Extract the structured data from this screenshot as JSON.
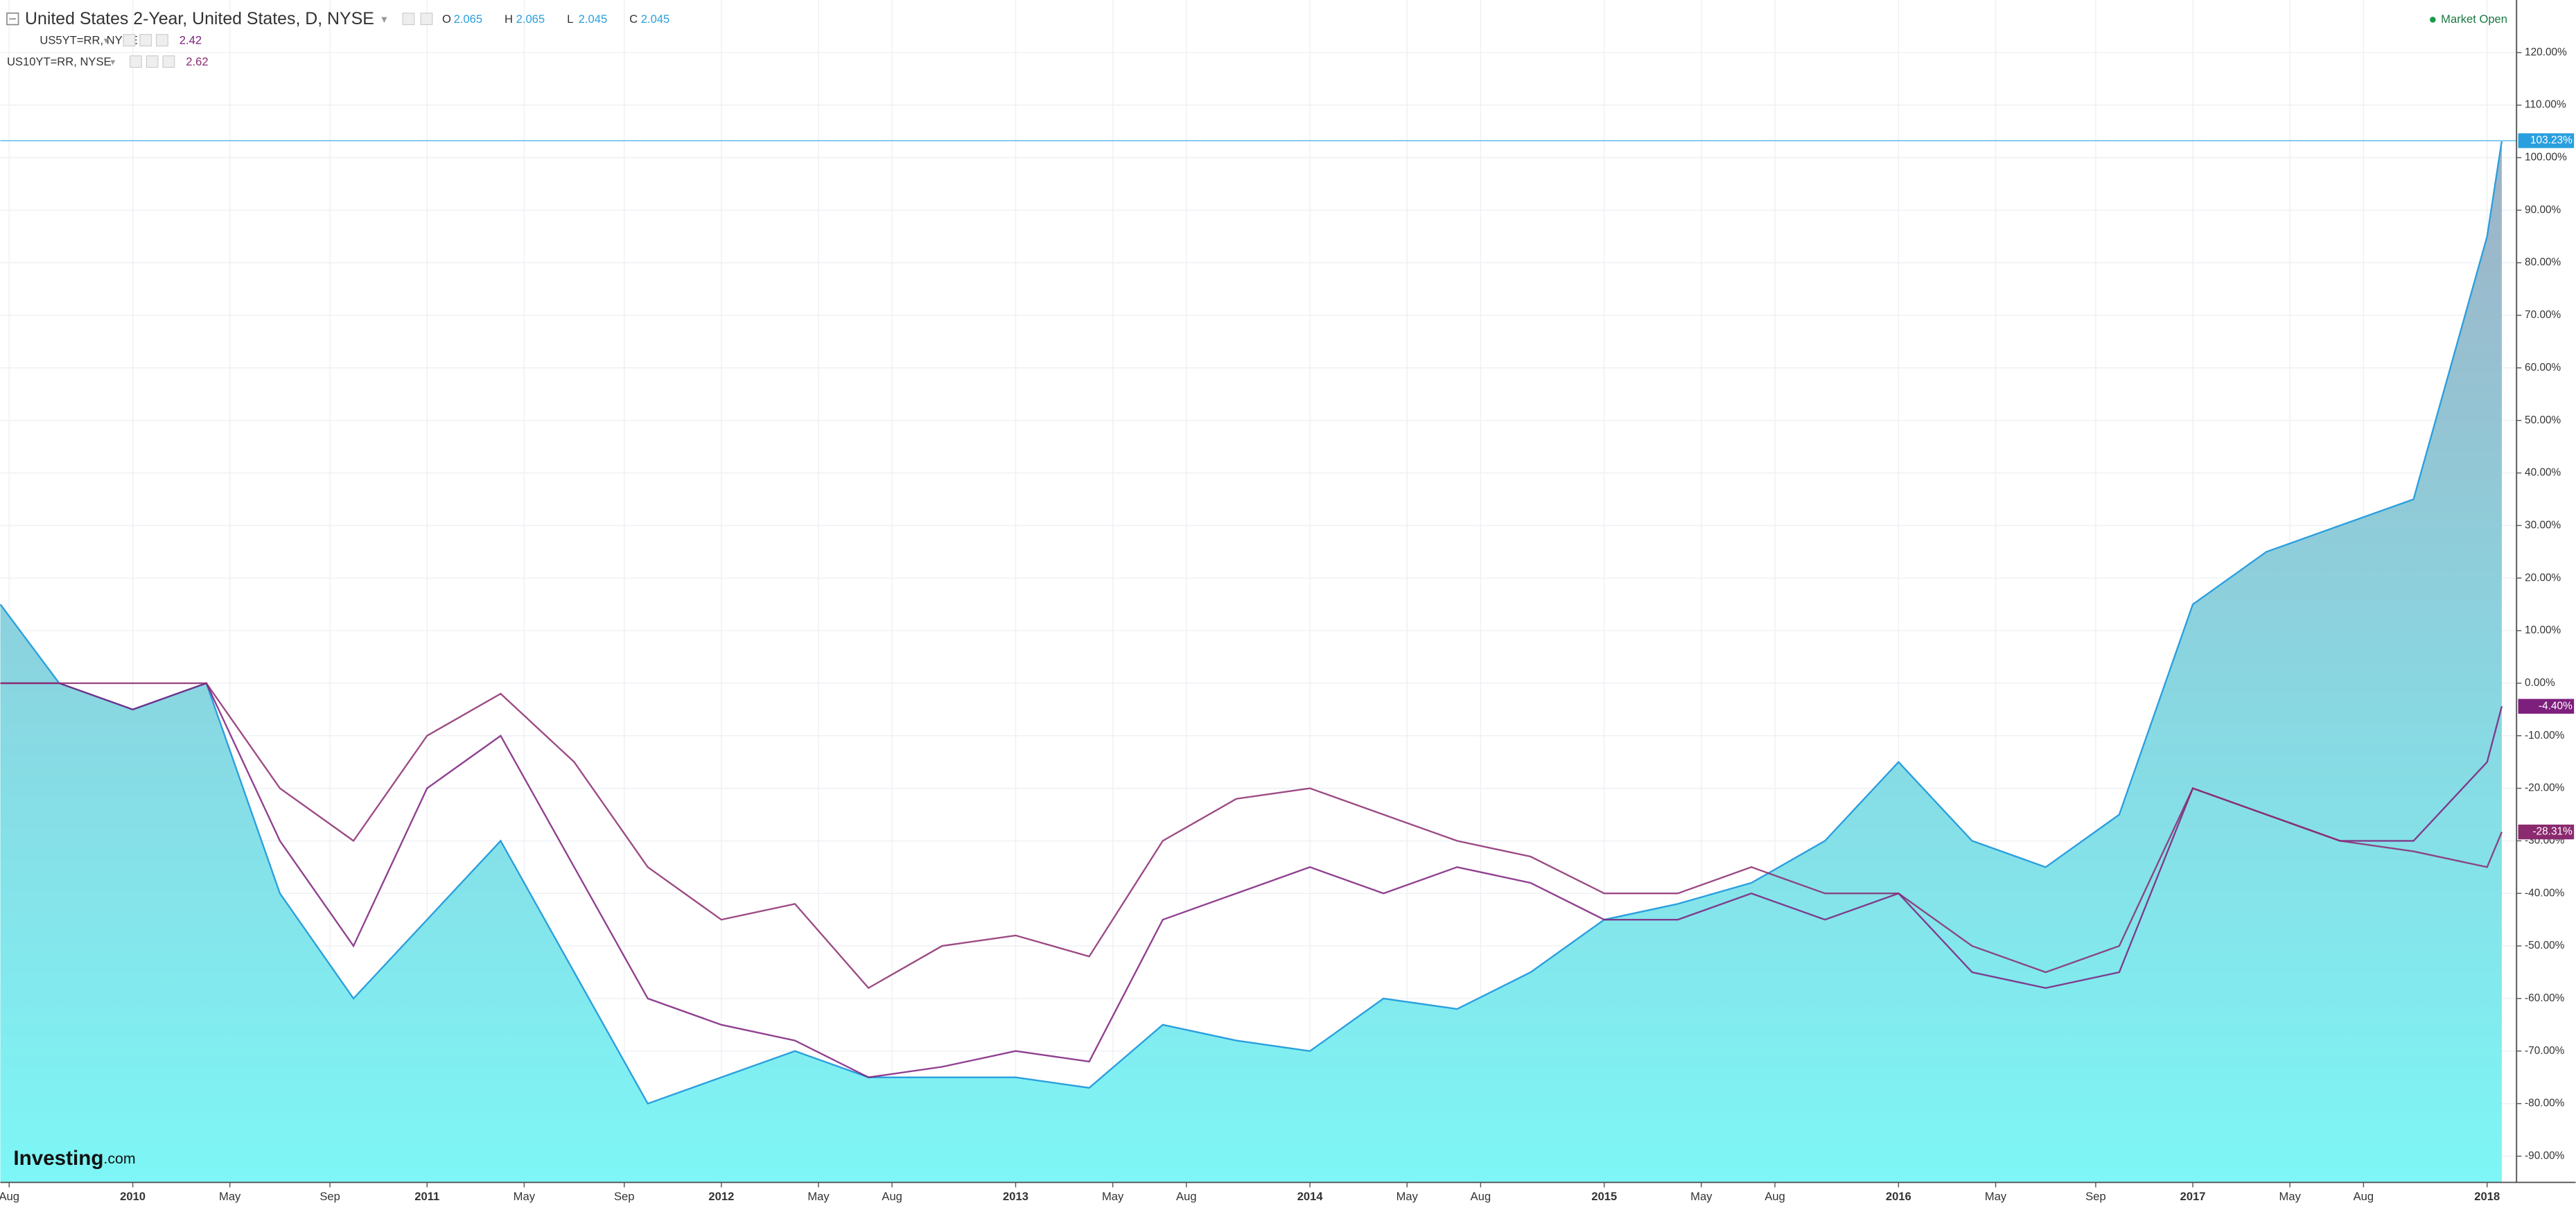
{
  "chart_data": {
    "type": "area-line",
    "title": "United States 2-Year, United States, D, NYSE",
    "ohlc_labels": [
      "O",
      "H",
      "L",
      "C"
    ],
    "ohlc_values": [
      2.065,
      2.065,
      2.045,
      2.045
    ],
    "status": "Market Open",
    "logo": "Investing",
    "logo_suffix": ".com",
    "x": [
      2009.55,
      2009.75,
      2010,
      2010.25,
      2010.5,
      2010.75,
      2011,
      2011.25,
      2011.5,
      2011.75,
      2012,
      2012.25,
      2012.5,
      2012.75,
      2013,
      2013.25,
      2013.5,
      2013.75,
      2014,
      2014.25,
      2014.5,
      2014.75,
      2015,
      2015.25,
      2015.5,
      2015.75,
      2016,
      2016.25,
      2016.5,
      2016.75,
      2017,
      2017.25,
      2017.5,
      2017.75,
      2018,
      2018.05
    ],
    "series": [
      {
        "name": "United States 2-Year, United States, D, NYSE",
        "color": "#2a9fde",
        "style": "area",
        "price_label": "103.23%",
        "values": [
          15,
          0,
          -5,
          0,
          -40,
          -60,
          -45,
          -30,
          -55,
          -80,
          -75,
          -70,
          -75,
          -75,
          -75,
          -77,
          -65,
          -68,
          -70,
          -60,
          -62,
          -55,
          -45,
          -42,
          -38,
          -30,
          -15,
          -30,
          -35,
          -25,
          15,
          25,
          30,
          35,
          85,
          103.23
        ]
      },
      {
        "name": "US5YT=RR, NYSE",
        "quote": 2.42,
        "color": "#7d1f7d",
        "style": "line",
        "price_label": "-4.40%",
        "values": [
          0,
          0,
          -5,
          0,
          -30,
          -50,
          -20,
          -10,
          -35,
          -60,
          -65,
          -68,
          -75,
          -73,
          -70,
          -72,
          -45,
          -40,
          -35,
          -40,
          -35,
          -38,
          -45,
          -45,
          -40,
          -45,
          -40,
          -55,
          -58,
          -55,
          -20,
          -25,
          -30,
          -30,
          -15,
          -4.4
        ]
      },
      {
        "name": "US10YT=RR, NYSE",
        "quote": 2.62,
        "color": "#8b2a6f",
        "style": "line",
        "price_label": "-28.31%",
        "values": [
          0,
          0,
          0,
          0,
          -20,
          -30,
          -10,
          -2,
          -15,
          -35,
          -45,
          -42,
          -58,
          -50,
          -48,
          -52,
          -30,
          -22,
          -20,
          -25,
          -30,
          -33,
          -40,
          -40,
          -35,
          -40,
          -40,
          -50,
          -55,
          -50,
          -20,
          -25,
          -30,
          -32,
          -35,
          -28.31
        ]
      }
    ],
    "xlim": [
      2009.55,
      2018.1
    ],
    "xticks": [
      {
        "value": 2009.58,
        "label": "Aug"
      },
      2010,
      {
        "value": 2010.33,
        "label": "May"
      },
      {
        "value": 2010.67,
        "label": "Sep"
      },
      2011,
      {
        "value": 2011.33,
        "label": "May"
      },
      {
        "value": 2011.67,
        "label": "Sep"
      },
      2012,
      {
        "value": 2012.33,
        "label": "May"
      },
      {
        "value": 2012.58,
        "label": "Aug"
      },
      2013,
      {
        "value": 2013.33,
        "label": "May"
      },
      {
        "value": 2013.58,
        "label": "Aug"
      },
      2014,
      {
        "value": 2014.33,
        "label": "May"
      },
      {
        "value": 2014.58,
        "label": "Aug"
      },
      2015,
      {
        "value": 2015.33,
        "label": "May"
      },
      {
        "value": 2015.58,
        "label": "Aug"
      },
      2016,
      {
        "value": 2016.33,
        "label": "May"
      },
      {
        "value": 2016.67,
        "label": "Sep"
      },
      2017,
      {
        "value": 2017.33,
        "label": "May"
      },
      {
        "value": 2017.58,
        "label": "Aug"
      },
      2018
    ],
    "ylim": [
      -95,
      130
    ],
    "yticks": [
      {
        "value": -90,
        "label": "-90.00%"
      },
      {
        "value": -80,
        "label": "-80.00%"
      },
      {
        "value": -70,
        "label": "-70.00%"
      },
      {
        "value": -60,
        "label": "-60.00%"
      },
      {
        "value": -50,
        "label": "-50.00%"
      },
      {
        "value": -40,
        "label": "-40.00%"
      },
      {
        "value": -30,
        "label": "-30.00%"
      },
      {
        "value": -20,
        "label": "-20.00%"
      },
      {
        "value": -10,
        "label": "-10.00%"
      },
      {
        "value": 0,
        "label": "0.00%"
      },
      {
        "value": 10,
        "label": "10.00%"
      },
      {
        "value": 20,
        "label": "20.00%"
      },
      {
        "value": 30,
        "label": "30.00%"
      },
      {
        "value": 40,
        "label": "40.00%"
      },
      {
        "value": 50,
        "label": "50.00%"
      },
      {
        "value": 60,
        "label": "60.00%"
      },
      {
        "value": 70,
        "label": "70.00%"
      },
      {
        "value": 80,
        "label": "80.00%"
      },
      {
        "value": 90,
        "label": "90.00%"
      },
      {
        "value": 100,
        "label": "100.00%"
      },
      {
        "value": 110,
        "label": "110.00%"
      },
      {
        "value": 120,
        "label": "120.00%"
      }
    ],
    "grid": true
  }
}
